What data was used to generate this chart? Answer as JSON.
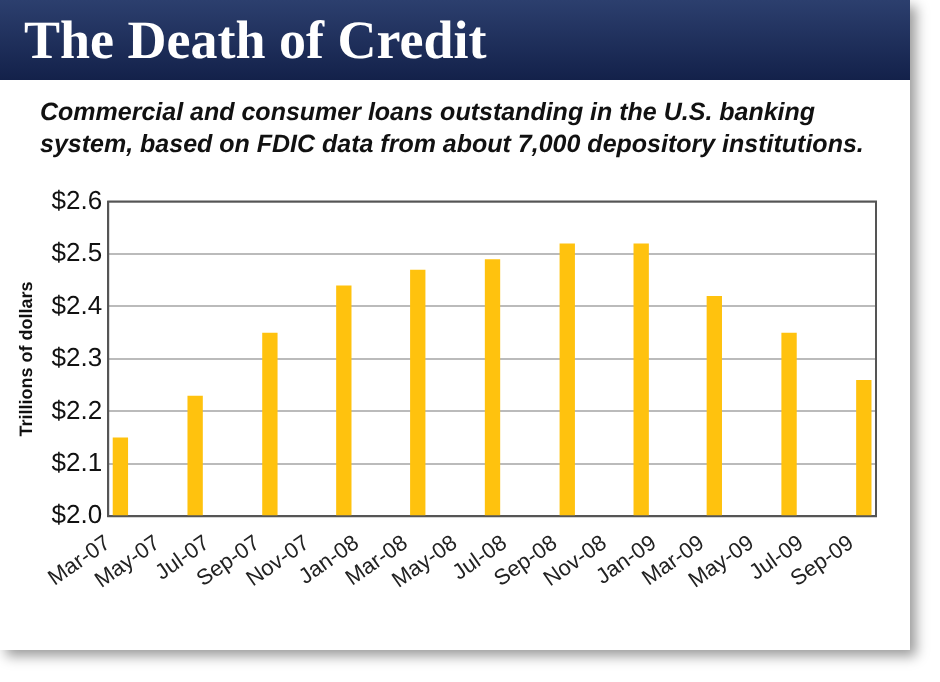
{
  "chart_data": {
    "type": "bar",
    "title": "The Death of Credit",
    "subtitle": "Commercial and consumer loans outstanding in the U.S. banking system, based on FDIC data from about 7,000 depository institutions.",
    "ylabel": "Trillions of dollars",
    "x": [
      "2007-03-16",
      "2007-06-16",
      "2007-09-16",
      "2007-12-16",
      "2008-03-16",
      "2008-06-16",
      "2008-09-16",
      "2008-12-16",
      "2009-03-16",
      "2009-06-16",
      "2009-09-16"
    ],
    "values": [
      2.15,
      2.23,
      2.35,
      2.44,
      2.47,
      2.49,
      2.52,
      2.52,
      2.42,
      2.35,
      2.26
    ],
    "color": "#ffc20e",
    "xlim": [
      "2007-03",
      "2009-10"
    ],
    "xticks": [
      {
        "value": "2007-03",
        "label": "Mar-07"
      },
      {
        "value": "2007-05",
        "label": "May-07"
      },
      {
        "value": "2007-07",
        "label": "Jul-07"
      },
      {
        "value": "2007-09",
        "label": "Sep-07"
      },
      {
        "value": "2007-11",
        "label": "Nov-07"
      },
      {
        "value": "2008-01",
        "label": "Jan-08"
      },
      {
        "value": "2008-03",
        "label": "Mar-08"
      },
      {
        "value": "2008-05",
        "label": "May-08"
      },
      {
        "value": "2008-07",
        "label": "Jul-08"
      },
      {
        "value": "2008-09",
        "label": "Sep-08"
      },
      {
        "value": "2008-11",
        "label": "Nov-08"
      },
      {
        "value": "2009-01",
        "label": "Jan-09"
      },
      {
        "value": "2009-03",
        "label": "Mar-09"
      },
      {
        "value": "2009-05",
        "label": "May-09"
      },
      {
        "value": "2009-07",
        "label": "Jul-09"
      },
      {
        "value": "2009-09",
        "label": "Sep-09"
      }
    ],
    "ylim": [
      2.0,
      2.6
    ],
    "yticks": [
      {
        "value": 2.0,
        "label": "$2.0"
      },
      {
        "value": 2.1,
        "label": "$2.1"
      },
      {
        "value": 2.2,
        "label": "$2.2"
      },
      {
        "value": 2.3,
        "label": "$2.3"
      },
      {
        "value": 2.4,
        "label": "$2.4"
      },
      {
        "value": 2.5,
        "label": "$2.5"
      },
      {
        "value": 2.6,
        "label": "$2.6"
      }
    ],
    "grid": "y",
    "legend": false
  }
}
